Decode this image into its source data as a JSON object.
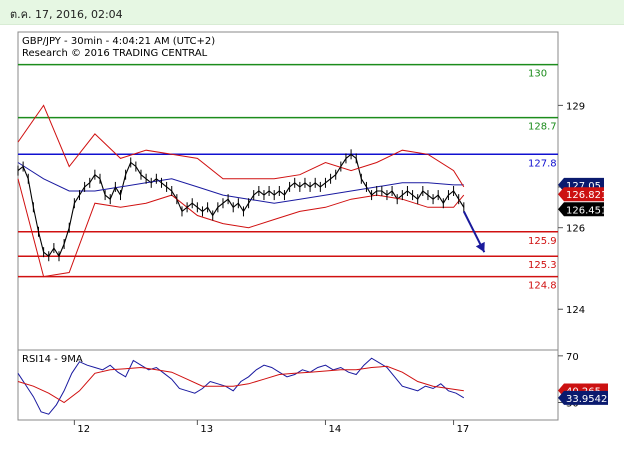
{
  "header": {
    "date": "ต.ค. 17, 2016, 02:04"
  },
  "colors": {
    "resistance_green": "#1c8c1c",
    "level_blue": "#1010d0",
    "support_red": "#d01010",
    "bollinger_red": "#d01010",
    "ma_blue": "#1a1aa0",
    "price_black": "#000000",
    "arrow_blue": "#1a1a9c",
    "tag_navy": "#0a1a6e",
    "tag_red": "#cc1111",
    "tag_black": "#000000"
  },
  "chart_data": [
    {
      "type": "line",
      "title": "GBP/JPY - 30min - 4:04:21 AM (UTC+2)",
      "subtitle": "Research © 2016 TRADING CENTRAL",
      "ylim": [
        123.0,
        130.8
      ],
      "y_ticks": [
        124,
        126,
        127,
        129
      ],
      "y_tick_labels": [
        "124",
        "126",
        "127",
        "129"
      ],
      "x_range": [
        0,
        185
      ],
      "x_ticks": [
        {
          "x": 22,
          "label": "12"
        },
        {
          "x": 70,
          "label": "13"
        },
        {
          "x": 120,
          "label": "14"
        },
        {
          "x": 170,
          "label": "17"
        }
      ],
      "horizontal_levels": [
        {
          "value": 130.0,
          "label": "130",
          "kind": "resistance"
        },
        {
          "value": 128.7,
          "label": "128.7",
          "kind": "resistance"
        },
        {
          "value": 127.8,
          "label": "127.8",
          "kind": "level"
        },
        {
          "value": 125.9,
          "label": "125.9",
          "kind": "support"
        },
        {
          "value": 125.3,
          "label": "125.3",
          "kind": "support"
        },
        {
          "value": 124.8,
          "label": "124.8",
          "kind": "support"
        }
      ],
      "price_tags": [
        {
          "value": 127.05,
          "label": "127.05",
          "kind": "ma"
        },
        {
          "value": 126.821,
          "label": "126.821",
          "kind": "bollinger"
        },
        {
          "value": 126.451,
          "label": "126.451",
          "kind": "price"
        }
      ],
      "series": [
        {
          "key": "price",
          "x": [
            0,
            2,
            4,
            6,
            8,
            10,
            12,
            14,
            16,
            18,
            20,
            22,
            24,
            26,
            28,
            30,
            32,
            34,
            36,
            38,
            40,
            42,
            44,
            46,
            48,
            50,
            52,
            54,
            56,
            58,
            60,
            62,
            64,
            66,
            68,
            70,
            72,
            74,
            76,
            78,
            80,
            82,
            84,
            86,
            88,
            90,
            92,
            94,
            96,
            98,
            100,
            102,
            104,
            106,
            108,
            110,
            112,
            114,
            116,
            118,
            120,
            122,
            124,
            126,
            128,
            130,
            132,
            134,
            136,
            138,
            140,
            142,
            144,
            146,
            148,
            150,
            152,
            154,
            156,
            158,
            160,
            162,
            164,
            166,
            168,
            170,
            172,
            174
          ],
          "y": [
            127.4,
            127.5,
            127.2,
            126.5,
            125.9,
            125.4,
            125.3,
            125.5,
            125.3,
            125.6,
            126.0,
            126.6,
            126.8,
            127.0,
            127.1,
            127.3,
            127.2,
            126.8,
            126.7,
            127.0,
            126.8,
            127.3,
            127.6,
            127.5,
            127.3,
            127.2,
            127.1,
            127.2,
            127.1,
            127.0,
            126.9,
            126.7,
            126.4,
            126.5,
            126.6,
            126.5,
            126.4,
            126.5,
            126.3,
            126.5,
            126.6,
            126.7,
            126.5,
            126.6,
            126.4,
            126.6,
            126.8,
            126.9,
            126.8,
            126.9,
            126.8,
            126.9,
            126.8,
            127.0,
            127.1,
            127.0,
            127.1,
            127.0,
            127.1,
            127.0,
            127.1,
            127.2,
            127.3,
            127.5,
            127.7,
            127.8,
            127.7,
            127.2,
            127.0,
            126.8,
            126.9,
            126.9,
            126.8,
            126.9,
            126.7,
            126.8,
            126.9,
            126.8,
            126.7,
            126.9,
            126.8,
            126.7,
            126.8,
            126.6,
            126.8,
            126.9,
            126.7,
            126.5
          ]
        },
        {
          "key": "ma",
          "x": [
            0,
            10,
            20,
            30,
            40,
            50,
            60,
            70,
            80,
            90,
            100,
            110,
            120,
            130,
            140,
            150,
            160,
            170,
            174
          ],
          "y": [
            127.6,
            127.2,
            126.9,
            126.9,
            127.0,
            127.1,
            127.2,
            127.0,
            126.8,
            126.7,
            126.6,
            126.7,
            126.8,
            126.9,
            127.0,
            127.1,
            127.1,
            127.05,
            127.05
          ]
        },
        {
          "key": "bb_upper",
          "x": [
            0,
            10,
            20,
            30,
            40,
            50,
            60,
            70,
            80,
            90,
            100,
            110,
            120,
            130,
            140,
            150,
            160,
            170,
            174
          ],
          "y": [
            128.1,
            129.0,
            127.5,
            128.3,
            127.7,
            127.9,
            127.8,
            127.7,
            127.2,
            127.2,
            127.2,
            127.3,
            127.6,
            127.4,
            127.6,
            127.9,
            127.8,
            127.4,
            127.0
          ]
        },
        {
          "key": "bb_lower",
          "x": [
            0,
            10,
            20,
            30,
            40,
            50,
            60,
            70,
            80,
            90,
            100,
            110,
            120,
            130,
            140,
            150,
            160,
            170,
            174
          ],
          "y": [
            127.2,
            124.8,
            124.9,
            126.6,
            126.5,
            126.6,
            126.8,
            126.3,
            126.1,
            126.0,
            126.2,
            126.4,
            126.5,
            126.7,
            126.8,
            126.7,
            126.5,
            126.5,
            126.8
          ]
        }
      ],
      "arrow": {
        "from": {
          "x": 174,
          "y": 126.4
        },
        "to": {
          "x": 182,
          "y": 125.4
        }
      }
    },
    {
      "type": "line",
      "title": "RSI14 - 9MA",
      "ylim": [
        15,
        75
      ],
      "y_ticks": [
        30,
        70
      ],
      "y_tick_labels": [
        "30",
        "70"
      ],
      "price_tags": [
        {
          "value": 40.265,
          "label": "40.265",
          "kind": "ma"
        },
        {
          "value": 33.9542,
          "label": "33.9542",
          "kind": "rsi"
        }
      ],
      "series": [
        {
          "key": "rsi",
          "x": [
            0,
            3,
            6,
            9,
            12,
            15,
            18,
            21,
            24,
            27,
            30,
            33,
            36,
            39,
            42,
            45,
            48,
            51,
            54,
            57,
            60,
            63,
            66,
            69,
            72,
            75,
            78,
            81,
            84,
            87,
            90,
            93,
            96,
            99,
            102,
            105,
            108,
            111,
            114,
            117,
            120,
            123,
            126,
            129,
            132,
            135,
            138,
            141,
            144,
            147,
            150,
            153,
            156,
            159,
            162,
            165,
            168,
            171,
            174
          ],
          "y": [
            55,
            45,
            35,
            22,
            20,
            28,
            40,
            55,
            65,
            62,
            60,
            58,
            62,
            56,
            52,
            66,
            62,
            58,
            60,
            55,
            50,
            42,
            40,
            38,
            42,
            48,
            46,
            44,
            40,
            48,
            52,
            58,
            62,
            60,
            56,
            52,
            54,
            58,
            56,
            60,
            62,
            58,
            60,
            56,
            54,
            62,
            68,
            64,
            60,
            52,
            44,
            42,
            40,
            44,
            42,
            46,
            40,
            38,
            34
          ]
        },
        {
          "key": "rsi_ma",
          "x": [
            0,
            6,
            12,
            18,
            24,
            30,
            36,
            42,
            48,
            54,
            60,
            66,
            72,
            78,
            84,
            90,
            96,
            102,
            108,
            114,
            120,
            126,
            132,
            138,
            144,
            150,
            156,
            162,
            168,
            174
          ],
          "y": [
            48,
            44,
            38,
            30,
            40,
            55,
            58,
            59,
            60,
            58,
            56,
            50,
            44,
            44,
            44,
            46,
            50,
            54,
            55,
            56,
            57,
            58,
            58,
            60,
            61,
            56,
            48,
            44,
            42,
            40
          ]
        }
      ]
    }
  ]
}
